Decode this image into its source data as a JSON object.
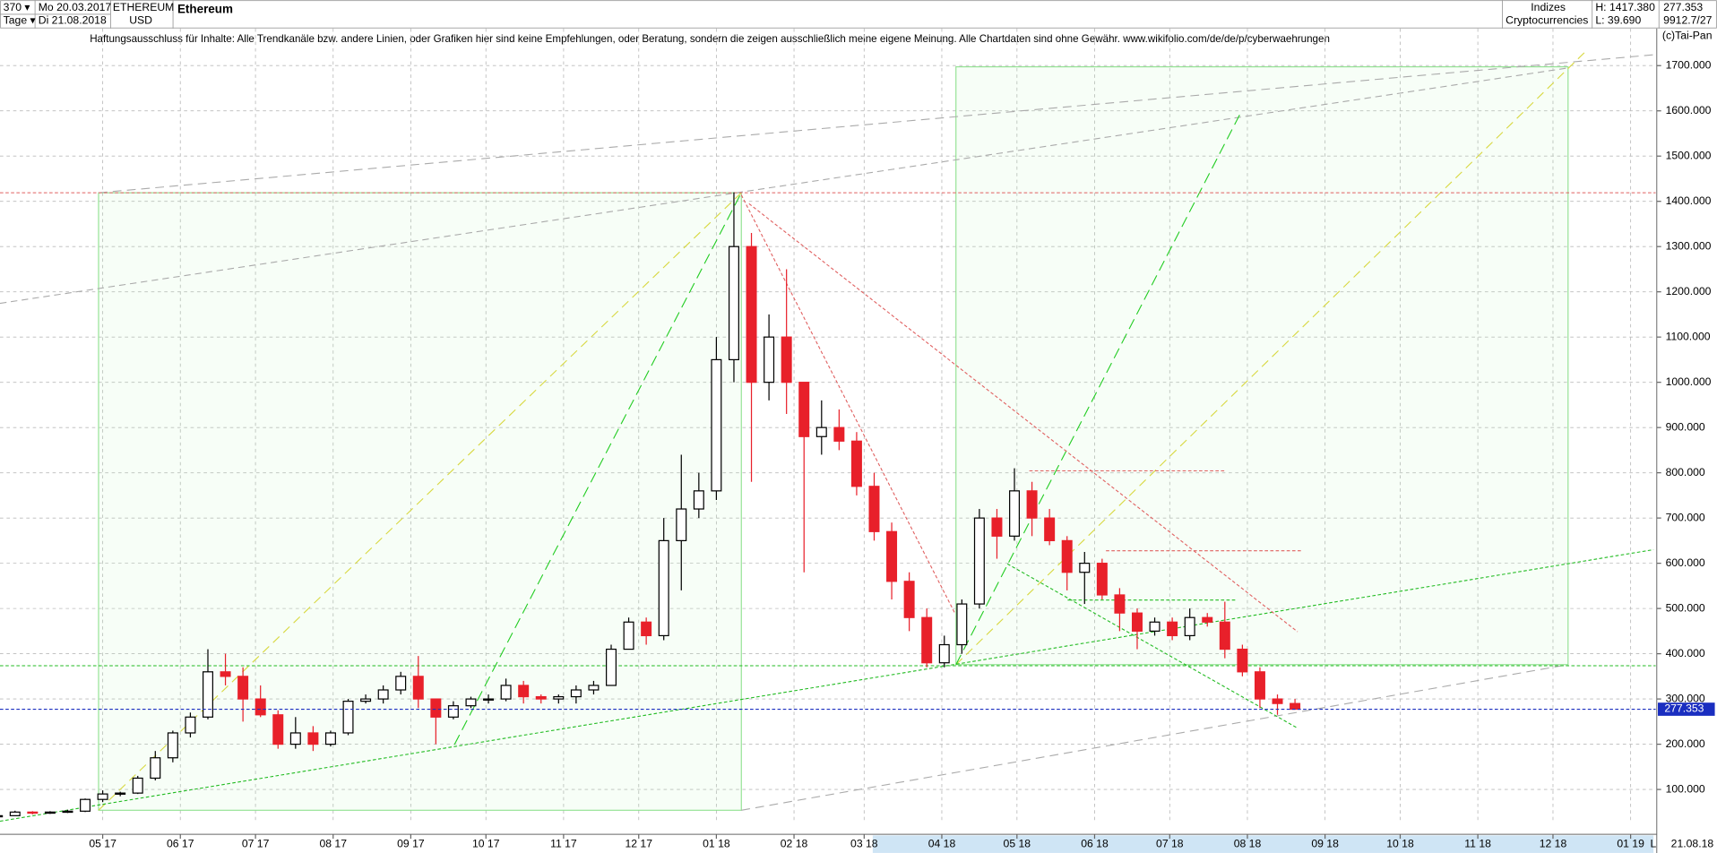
{
  "header": {
    "count": "370 ▾",
    "period": "Tage ▾",
    "start": "Mo 20.03.2017",
    "end": "Di 21.08.2018",
    "symbol": "ETHEREUM",
    "currency": "USD",
    "group": "Indizes",
    "subgroup": "Cryptocurrencies",
    "high": "H: 1417.380",
    "low": "L: 39.690",
    "ratio": "9912.7/27",
    "copyright": "(c)Tai-Pan",
    "disclaimer": "Haftungsausschluss für Inhalte: Alle Trendkanäle bzw. andere Linien, oder Grafiken hier sind keine Empfehlungen, oder Beratung, sondern die zeigen ausschließlich meine eigene Meinung. Alle Chartdaten sind ohne Gewähr.  www.wikifolio.com/de/de/p/cyberwaehrungen",
    "scale_mode": "L",
    "date": "21.08.18"
  },
  "chart_data": {
    "type": "candlestick",
    "title": "Ethereum",
    "x": [
      0,
      7,
      14,
      21,
      28,
      35,
      42,
      49,
      56,
      63,
      70,
      77,
      84,
      91,
      98,
      105,
      112,
      119,
      126,
      133,
      140,
      147,
      154,
      161,
      168,
      175,
      182,
      189,
      196,
      203,
      210,
      217,
      224,
      231,
      238,
      245,
      252,
      259,
      266,
      273,
      280,
      287,
      294,
      301,
      308,
      315,
      322,
      329,
      336,
      343,
      350,
      357,
      364,
      371,
      378,
      385,
      392,
      399,
      406,
      413,
      420,
      427,
      434,
      441,
      448,
      455,
      462,
      469,
      476,
      483,
      490,
      497,
      504,
      511,
      518
    ],
    "open": [
      40,
      42,
      50,
      48,
      50,
      52,
      78,
      90,
      92,
      125,
      170,
      225,
      260,
      360,
      350,
      300,
      265,
      200,
      225,
      200,
      225,
      295,
      300,
      320,
      350,
      300,
      260,
      285,
      300,
      300,
      330,
      305,
      300,
      305,
      320,
      330,
      410,
      470,
      440,
      650,
      720,
      760,
      1050,
      1300,
      1000,
      1100,
      1000,
      880,
      900,
      870,
      770,
      670,
      560,
      480,
      380,
      420,
      510,
      700,
      660,
      760,
      700,
      650,
      580,
      600,
      530,
      490,
      450,
      470,
      440,
      480,
      470,
      410,
      360,
      300,
      290
    ],
    "high": [
      45,
      53,
      52,
      52,
      55,
      80,
      98,
      95,
      130,
      185,
      230,
      270,
      410,
      400,
      370,
      330,
      275,
      260,
      240,
      230,
      300,
      310,
      330,
      360,
      395,
      300,
      295,
      305,
      310,
      345,
      340,
      310,
      310,
      330,
      340,
      420,
      480,
      480,
      700,
      840,
      800,
      1100,
      1420,
      1330,
      1150,
      1250,
      1000,
      960,
      940,
      890,
      800,
      690,
      580,
      500,
      440,
      520,
      720,
      720,
      810,
      780,
      720,
      660,
      625,
      610,
      545,
      500,
      480,
      480,
      500,
      490,
      515,
      420,
      370,
      310,
      300
    ],
    "low": [
      38,
      42,
      45,
      46,
      48,
      50,
      72,
      85,
      90,
      120,
      160,
      215,
      255,
      330,
      250,
      260,
      190,
      190,
      185,
      195,
      220,
      290,
      290,
      310,
      280,
      200,
      255,
      280,
      290,
      295,
      290,
      290,
      290,
      290,
      310,
      330,
      410,
      420,
      430,
      540,
      700,
      740,
      1000,
      780,
      960,
      930,
      580,
      840,
      850,
      750,
      650,
      520,
      450,
      370,
      370,
      400,
      500,
      610,
      650,
      660,
      640,
      540,
      510,
      520,
      450,
      410,
      440,
      430,
      430,
      460,
      390,
      350,
      280,
      265,
      277
    ],
    "close": [
      42,
      50,
      48,
      50,
      52,
      78,
      90,
      92,
      125,
      170,
      225,
      260,
      360,
      350,
      300,
      265,
      200,
      225,
      200,
      225,
      295,
      300,
      320,
      350,
      300,
      260,
      285,
      300,
      300,
      330,
      305,
      300,
      305,
      320,
      330,
      410,
      470,
      440,
      650,
      720,
      760,
      1050,
      1300,
      1000,
      1100,
      1000,
      880,
      900,
      870,
      770,
      670,
      560,
      480,
      380,
      420,
      510,
      700,
      660,
      760,
      700,
      650,
      580,
      600,
      530,
      490,
      450,
      470,
      440,
      480,
      470,
      410,
      360,
      300,
      290,
      277.353
    ],
    "up_color": "#000000",
    "down_color": "#e8202a",
    "last_price": 277.353,
    "last_color": "#1a2ec0",
    "xlim": [
      1,
      662
    ],
    "ylim": [
      25,
      1782
    ],
    "grid": true,
    "yticks": [
      {
        "value": 100,
        "label": "100.000"
      },
      {
        "value": 200,
        "label": "200.000"
      },
      {
        "value": 300,
        "label": "300.000"
      },
      {
        "value": 400,
        "label": "400.000"
      },
      {
        "value": 500,
        "label": "500.000"
      },
      {
        "value": 600,
        "label": "600.000"
      },
      {
        "value": 700,
        "label": "700.000"
      },
      {
        "value": 800,
        "label": "800.000"
      },
      {
        "value": 900,
        "label": "900.000"
      },
      {
        "value": 1000,
        "label": "1000.000"
      },
      {
        "value": 1100,
        "label": "1100.000"
      },
      {
        "value": 1200,
        "label": "1200.000"
      },
      {
        "value": 1300,
        "label": "1300.000"
      },
      {
        "value": 1400,
        "label": "1400.000"
      },
      {
        "value": 1500,
        "label": "1500.000"
      },
      {
        "value": 1600,
        "label": "1600.000"
      },
      {
        "value": 1700,
        "label": "1700.000"
      }
    ],
    "xticks": [
      {
        "value": 42,
        "label": "05 17"
      },
      {
        "value": 73,
        "label": "06 17"
      },
      {
        "value": 103,
        "label": "07 17"
      },
      {
        "value": 134,
        "label": "08 17"
      },
      {
        "value": 165,
        "label": "09 17"
      },
      {
        "value": 195,
        "label": "10 17"
      },
      {
        "value": 226,
        "label": "11 17"
      },
      {
        "value": 256,
        "label": "12 17"
      },
      {
        "value": 287,
        "label": "01 18"
      },
      {
        "value": 318,
        "label": "02 18"
      },
      {
        "value": 346,
        "label": "03 18"
      },
      {
        "value": 377,
        "label": "04 18"
      },
      {
        "value": 407,
        "label": "05 18"
      },
      {
        "value": 438,
        "label": "06 18"
      },
      {
        "value": 468,
        "label": "07 18"
      },
      {
        "value": 499,
        "label": "08 18"
      },
      {
        "value": 530,
        "label": "09 18"
      },
      {
        "value": 560,
        "label": "10 18"
      },
      {
        "value": 591,
        "label": "11 18"
      },
      {
        "value": 621,
        "label": "12 18"
      },
      {
        "value": 652,
        "label": "01 19"
      }
    ]
  }
}
